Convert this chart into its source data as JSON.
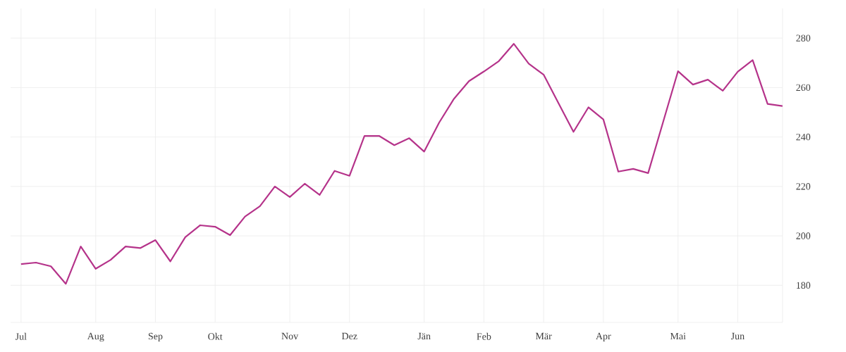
{
  "chart_data": {
    "type": "line",
    "color": "#b5338a",
    "grid": true,
    "categories": [
      "Jul",
      null,
      null,
      null,
      null,
      "Aug",
      null,
      null,
      null,
      "Sep",
      null,
      null,
      null,
      "Okt",
      null,
      null,
      null,
      null,
      "Nov",
      null,
      null,
      null,
      "Dez",
      null,
      null,
      null,
      null,
      "Jän",
      null,
      null,
      null,
      "Feb",
      null,
      null,
      null,
      "Mär",
      null,
      null,
      null,
      "Apr",
      null,
      null,
      null,
      null,
      "Mai",
      null,
      null,
      null,
      "Jun",
      null,
      null,
      null
    ],
    "values": [
      188.6,
      189.2,
      187.7,
      180.6,
      195.7,
      186.7,
      190.3,
      195.7,
      195.1,
      198.3,
      189.7,
      199.5,
      204.3,
      203.7,
      200.3,
      207.8,
      212.0,
      220.0,
      215.7,
      221.1,
      216.6,
      226.3,
      224.3,
      240.4,
      240.4,
      236.7,
      239.5,
      234.1,
      245.8,
      255.5,
      262.6,
      266.5,
      270.7,
      277.7,
      269.7,
      265.2,
      253.6,
      242.1,
      252.0,
      247.1,
      226.0,
      227.1,
      225.4,
      246.0,
      266.6,
      261.2,
      263.2,
      258.7,
      266.4,
      271.1,
      253.4,
      252.5
    ],
    "ylim": [
      165,
      292
    ],
    "yticks": [
      180,
      200,
      220,
      240,
      260,
      280
    ]
  }
}
